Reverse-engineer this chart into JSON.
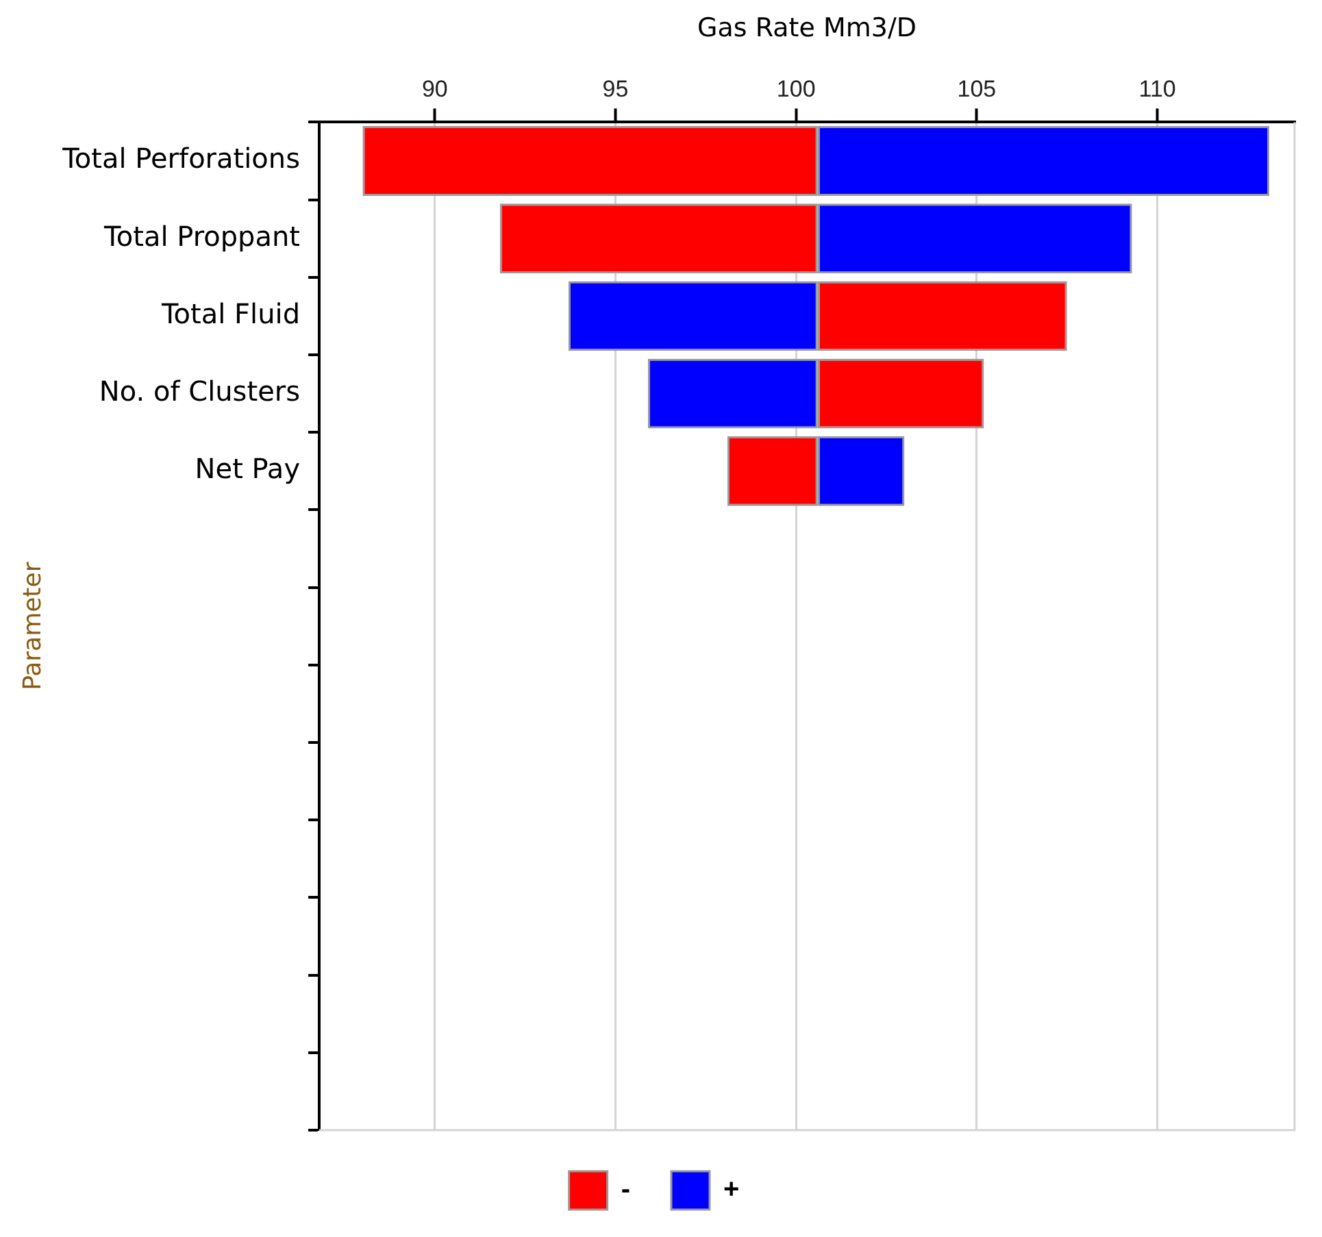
{
  "chart_data": {
    "type": "bar",
    "orientation": "horizontal",
    "xlabel": "Gas Rate Mm3/D",
    "ylabel": "Parameter",
    "categories": [
      "Total Perforations",
      "Total Proppant",
      "Total Fluid",
      "No. of Clusters",
      "Net Pay",
      null,
      null,
      null,
      null,
      null,
      null,
      null,
      null
    ],
    "series": [
      {
        "name": "-",
        "color": "#ff0000",
        "base": [
          88.0,
          91.8,
          100.6,
          100.6,
          98.1,
          null,
          null,
          null,
          null,
          null,
          null,
          null,
          null
        ],
        "values": [
          12.6,
          8.8,
          6.9,
          4.6,
          2.5,
          null,
          null,
          null,
          null,
          null,
          null,
          null,
          null
        ]
      },
      {
        "name": "+",
        "color": "#0000ff",
        "base": [
          100.6,
          100.6,
          93.7,
          95.9,
          100.6,
          null,
          null,
          null,
          null,
          null,
          null,
          null,
          null
        ],
        "values": [
          12.5,
          8.7,
          6.9,
          4.7,
          2.4,
          null,
          null,
          null,
          null,
          null,
          null,
          null,
          null
        ]
      }
    ],
    "xlim": [
      86.8,
      113.8
    ],
    "xticks": [
      90,
      95,
      100,
      105,
      110
    ],
    "grid": "x",
    "legend": "bottom"
  }
}
